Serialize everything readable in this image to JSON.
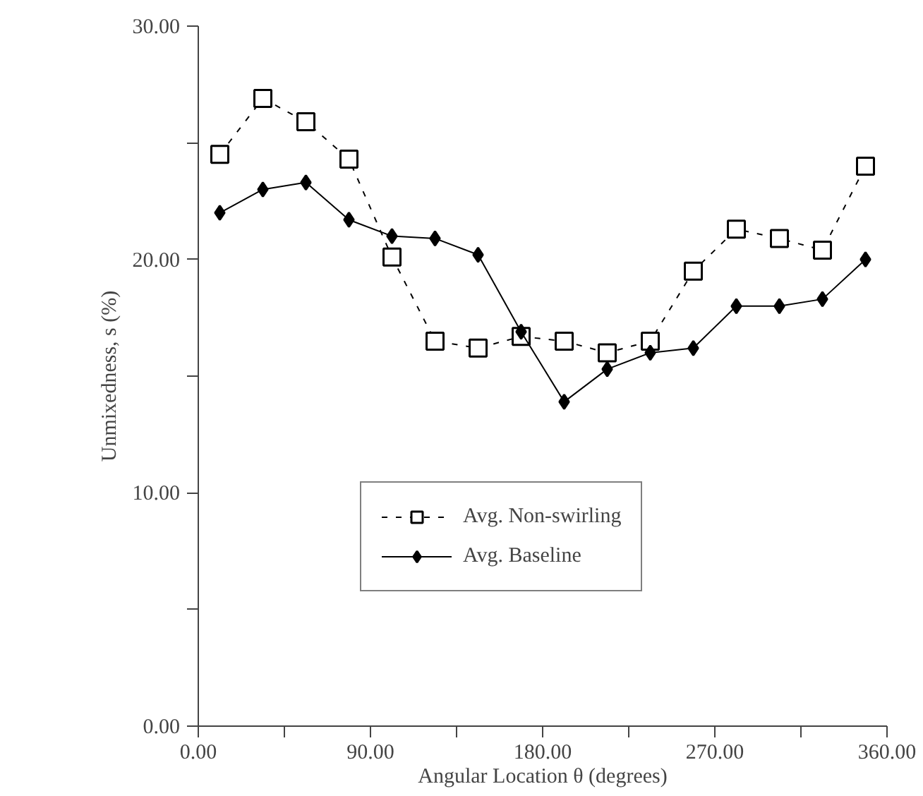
{
  "chart_data": {
    "type": "line",
    "xlabel": "Angular Location θ (degrees)",
    "ylabel": "Unmixedness, s (%)",
    "x": [
      11.25,
      33.75,
      56.25,
      78.75,
      101.25,
      123.75,
      146.25,
      168.75,
      191.25,
      213.75,
      236.25,
      258.75,
      281.25,
      303.75,
      326.25,
      348.75
    ],
    "series": [
      {
        "name": "Avg. Non-swirling",
        "color": "#000000",
        "marker": "square",
        "line_style": "dashed",
        "values": [
          24.5,
          26.9,
          25.9,
          24.3,
          20.1,
          16.5,
          16.2,
          16.7,
          16.5,
          16.0,
          16.5,
          19.5,
          21.3,
          20.9,
          20.4,
          24.0
        ]
      },
      {
        "name": "Avg. Baseline",
        "color": "#000000",
        "marker": "diamond",
        "line_style": "solid",
        "values": [
          22.0,
          23.0,
          23.3,
          21.7,
          21.0,
          20.9,
          20.2,
          16.9,
          13.9,
          15.3,
          16.0,
          16.2,
          18.0,
          18.0,
          18.3,
          20.0
        ]
      }
    ],
    "xlim": [
      0,
      360
    ],
    "ylim": [
      0,
      30
    ],
    "xticks": [
      {
        "value": 0,
        "label": "0.00"
      },
      {
        "value": 45,
        "label": null
      },
      {
        "value": 90,
        "label": "90.00"
      },
      {
        "value": 135,
        "label": null
      },
      {
        "value": 180,
        "label": "180.00"
      },
      {
        "value": 225,
        "label": null
      },
      {
        "value": 270,
        "label": "270.00"
      },
      {
        "value": 315,
        "label": null
      },
      {
        "value": 360,
        "label": "360.00"
      }
    ],
    "yticks": [
      {
        "value": 0,
        "label": "0.00"
      },
      {
        "value": 5,
        "label": null
      },
      {
        "value": 10,
        "label": "10.00"
      },
      {
        "value": 15,
        "label": null
      },
      {
        "value": 20,
        "label": "20.00"
      },
      {
        "value": 25,
        "label": null
      },
      {
        "value": 30,
        "label": "30.00"
      }
    ],
    "grid": false,
    "legend": "center"
  }
}
